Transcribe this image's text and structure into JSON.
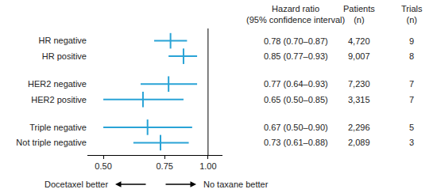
{
  "chart_data": {
    "type": "forest",
    "categories": [
      "HR negative",
      "HR positive",
      "HER2 negative",
      "HER2 positive",
      "Triple negative",
      "Not triple negative"
    ],
    "values": [
      0.78,
      0.85,
      0.77,
      0.65,
      0.67,
      0.73
    ],
    "ci_low": [
      0.7,
      0.77,
      0.64,
      0.5,
      0.5,
      0.61
    ],
    "ci_high": [
      0.87,
      0.93,
      0.93,
      0.85,
      0.9,
      0.88
    ],
    "value_labels": [
      "0.78 (0.70–0.87)",
      "0.85 (0.77–0.93)",
      "0.77 (0.64–0.93)",
      "0.65 (0.50–0.85)",
      "0.67 (0.50–0.90)",
      "0.73 (0.61–0.88)"
    ],
    "patients": [
      4720,
      9007,
      7230,
      3315,
      2296,
      2089
    ],
    "patients_labels": [
      "4,720",
      "9,007",
      "7,230",
      "3,315",
      "2,296",
      "2,089"
    ],
    "trials": [
      9,
      8,
      7,
      7,
      5,
      3
    ],
    "column_headers": [
      [
        "Hazard ratio",
        "(95% confidence interval)"
      ],
      [
        "Patients",
        "(n)"
      ],
      [
        "Trials",
        "(n)"
      ]
    ],
    "xlim": [
      0.45,
      1.1
    ],
    "xticks": [
      {
        "value": 0.5,
        "label": "0.50"
      },
      {
        "value": 0.75,
        "label": "0.75"
      },
      {
        "value": 1,
        "label": "1.00"
      }
    ],
    "reference_line": 1,
    "direction_labels": [
      "Docetaxel better",
      "No taxane better"
    ],
    "log": "x",
    "grid": false,
    "orientation": "horizontal",
    "color": "#29a3d6",
    "marker": "line-ns"
  }
}
